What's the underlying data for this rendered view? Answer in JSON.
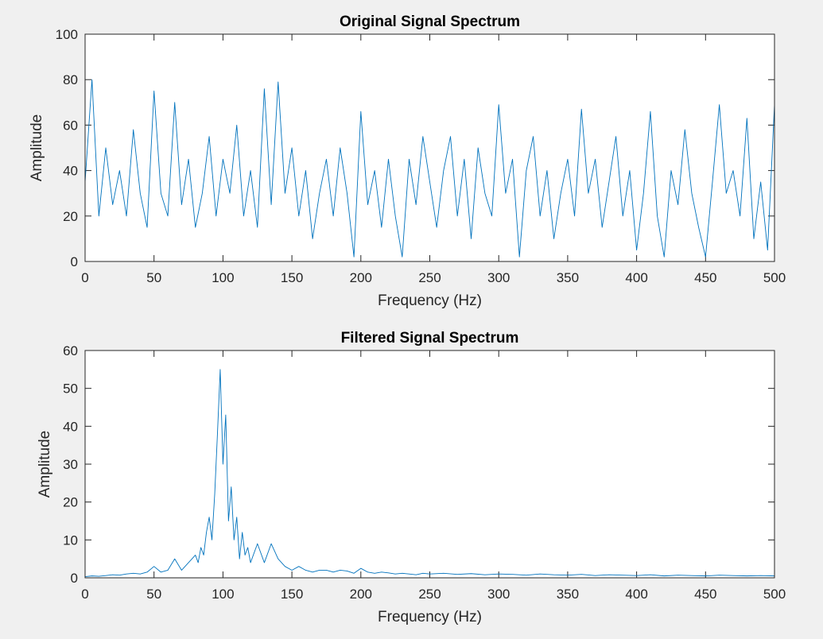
{
  "chart_data": [
    {
      "type": "line",
      "title": "Original Signal Spectrum",
      "x_label": "Frequency (Hz)",
      "y_label": "Amplitude",
      "color": "#0072bd",
      "x": [
        0,
        5,
        10,
        15,
        20,
        25,
        30,
        35,
        40,
        45,
        50,
        55,
        60,
        65,
        70,
        75,
        80,
        85,
        90,
        95,
        100,
        105,
        110,
        115,
        120,
        125,
        130,
        135,
        140,
        145,
        150,
        155,
        160,
        165,
        170,
        175,
        180,
        185,
        190,
        195,
        200,
        205,
        210,
        215,
        220,
        225,
        230,
        235,
        240,
        245,
        250,
        255,
        260,
        265,
        270,
        275,
        280,
        285,
        290,
        295,
        300,
        305,
        310,
        315,
        320,
        325,
        330,
        335,
        340,
        345,
        350,
        355,
        360,
        365,
        370,
        375,
        380,
        385,
        390,
        395,
        400,
        405,
        410,
        415,
        420,
        425,
        430,
        435,
        440,
        445,
        450,
        455,
        460,
        465,
        470,
        475,
        480,
        485,
        490,
        495,
        500
      ],
      "values": [
        35,
        80,
        20,
        50,
        25,
        40,
        20,
        58,
        30,
        15,
        75,
        30,
        20,
        70,
        25,
        45,
        15,
        30,
        55,
        20,
        45,
        30,
        60,
        20,
        40,
        15,
        76,
        25,
        79,
        30,
        50,
        20,
        40,
        10,
        30,
        45,
        20,
        50,
        30,
        2,
        66,
        25,
        40,
        15,
        45,
        20,
        2,
        45,
        25,
        55,
        35,
        15,
        40,
        55,
        20,
        45,
        10,
        50,
        30,
        20,
        69,
        30,
        45,
        2,
        40,
        55,
        20,
        40,
        10,
        30,
        45,
        20,
        67,
        30,
        45,
        15,
        35,
        55,
        20,
        40,
        5,
        30,
        66,
        20,
        2,
        40,
        25,
        58,
        30,
        15,
        2,
        35,
        69,
        30,
        40,
        20,
        63,
        10,
        35,
        5,
        69
      ],
      "xlim": [
        0,
        500
      ],
      "ylim": [
        0,
        100
      ],
      "xticks": [
        0,
        50,
        100,
        150,
        200,
        250,
        300,
        350,
        400,
        450,
        500
      ],
      "yticks": [
        0,
        20,
        40,
        60,
        80,
        100
      ]
    },
    {
      "type": "line",
      "title": "Filtered Signal Spectrum",
      "x_label": "Frequency (Hz)",
      "y_label": "Amplitude",
      "color": "#0072bd",
      "x": [
        0,
        5,
        10,
        15,
        20,
        25,
        30,
        35,
        40,
        45,
        50,
        55,
        60,
        65,
        70,
        75,
        80,
        82,
        84,
        86,
        88,
        90,
        92,
        94,
        96,
        98,
        100,
        102,
        104,
        106,
        108,
        110,
        112,
        114,
        116,
        118,
        120,
        125,
        130,
        135,
        140,
        145,
        150,
        155,
        160,
        165,
        170,
        175,
        180,
        185,
        190,
        195,
        200,
        205,
        210,
        215,
        220,
        225,
        230,
        235,
        240,
        245,
        250,
        260,
        270,
        280,
        290,
        300,
        310,
        320,
        330,
        340,
        350,
        360,
        370,
        380,
        390,
        400,
        410,
        420,
        430,
        440,
        450,
        460,
        470,
        480,
        490,
        500
      ],
      "values": [
        0.3,
        0.5,
        0.4,
        0.6,
        0.8,
        0.7,
        1,
        1.2,
        1,
        1.5,
        3,
        1.5,
        2,
        5,
        2,
        4,
        6,
        4,
        8,
        6,
        12,
        16,
        10,
        22,
        38,
        55,
        30,
        43,
        15,
        24,
        10,
        16,
        5,
        12,
        6,
        8,
        4,
        9,
        4,
        9,
        5,
        3,
        2,
        3,
        2,
        1.5,
        2,
        2,
        1.5,
        2,
        1.8,
        1.2,
        2.5,
        1.5,
        1.2,
        1.5,
        1.3,
        1,
        1.2,
        1,
        0.8,
        1.2,
        1,
        1.2,
        0.9,
        1.1,
        0.8,
        1,
        0.9,
        0.7,
        1,
        0.8,
        0.7,
        0.9,
        0.6,
        0.8,
        0.7,
        0.6,
        0.8,
        0.5,
        0.7,
        0.6,
        0.5,
        0.7,
        0.6,
        0.5,
        0.6,
        0.5
      ],
      "xlim": [
        0,
        500
      ],
      "ylim": [
        0,
        60
      ],
      "xticks": [
        0,
        50,
        100,
        150,
        200,
        250,
        300,
        350,
        400,
        450,
        500
      ],
      "yticks": [
        0,
        10,
        20,
        30,
        40,
        50,
        60
      ]
    }
  ]
}
